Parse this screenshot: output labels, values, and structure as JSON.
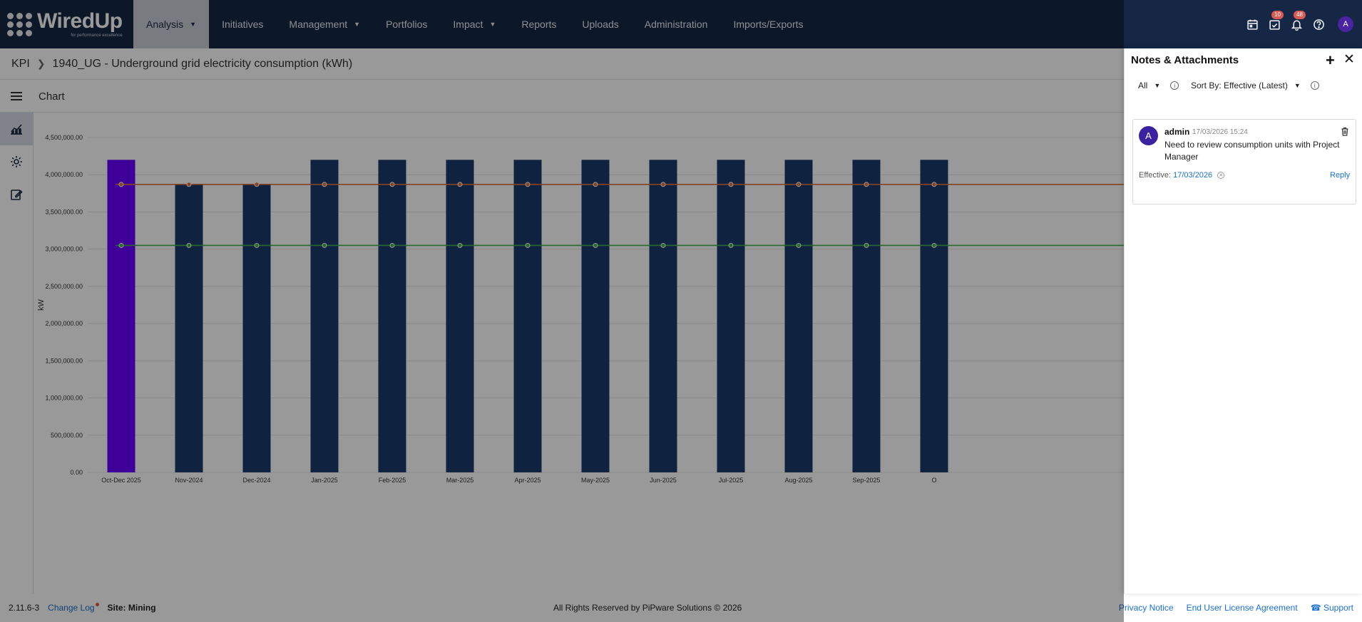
{
  "app": {
    "logo_name": "WiredUp",
    "logo_tagline": "for performance excellence"
  },
  "nav": [
    {
      "label": "Analysis",
      "dropdown": true,
      "active": true
    },
    {
      "label": "Initiatives",
      "dropdown": false
    },
    {
      "label": "Management",
      "dropdown": true
    },
    {
      "label": "Portfolios",
      "dropdown": false
    },
    {
      "label": "Impact",
      "dropdown": true
    },
    {
      "label": "Reports",
      "dropdown": false
    },
    {
      "label": "Uploads",
      "dropdown": false
    },
    {
      "label": "Administration",
      "dropdown": false
    },
    {
      "label": "Imports/Exports",
      "dropdown": false
    }
  ],
  "top_icons": {
    "calendar_icon": "calendar-icon",
    "tasks_badge": "10",
    "notifications_badge": "48",
    "help_icon": "help-icon",
    "avatar_initial": "A"
  },
  "breadcrumb": {
    "root": "KPI",
    "current": "1940_UG - Underground grid electricity consumption (kWh)"
  },
  "toolbar": {
    "title": "Chart"
  },
  "rail": [
    "chart-icon",
    "settings-icon",
    "edit-icon"
  ],
  "chart_data": {
    "type": "bar",
    "ylabel": "kW",
    "ylim": [
      0,
      4500000
    ],
    "yticks": [
      "0.00",
      "500,000.00",
      "1,000,000.00",
      "1,500,000.00",
      "2,000,000.00",
      "2,500,000.00",
      "3,000,000.00",
      "3,500,000.00",
      "4,000,000.00",
      "4,500,000.00"
    ],
    "categories": [
      "Oct-Dec 2025",
      "Nov-2024",
      "Dec-2024",
      "Jan-2025",
      "Feb-2025",
      "Mar-2025",
      "Apr-2025",
      "May-2025",
      "Jun-2025",
      "Jul-2025",
      "Aug-2025",
      "Sep-2025",
      "O"
    ],
    "series": [
      {
        "type": "bar",
        "values": [
          4200000,
          3870000,
          3870000,
          4200000,
          4200000,
          4200000,
          4200000,
          4200000,
          4200000,
          4200000,
          4200000,
          4200000,
          4200000
        ],
        "highlight_index": 0,
        "color": "#1a3b6b",
        "highlight_color": "#6a00ff"
      },
      {
        "type": "line",
        "values": [
          3870000,
          3870000,
          3870000,
          3870000,
          3870000,
          3870000,
          3870000,
          3870000,
          3870000,
          3870000,
          3870000,
          3870000,
          3870000
        ],
        "color": "#e0703a"
      },
      {
        "type": "line",
        "values": [
          3050000,
          3050000,
          3050000,
          3050000,
          3050000,
          3050000,
          3050000,
          3050000,
          3050000,
          3050000,
          3050000,
          3050000,
          3050000
        ],
        "color": "#43b04a"
      }
    ],
    "grid": true
  },
  "panel": {
    "title": "Notes & Attachments",
    "filter_label": "All",
    "sort_label": "Sort By: Effective (Latest)",
    "note": {
      "avatar": "A",
      "author": "admin",
      "timestamp": "17/03/2026 15:24",
      "body": "Need to review consumption units with Project Manager",
      "effective_label": "Effective:",
      "effective_date": "17/03/2026",
      "reply_label": "Reply"
    }
  },
  "footer": {
    "version": "2.11.6-3",
    "changelog": "Change Log",
    "site": "Site: Mining",
    "copyright": "All Rights Reserved by PiPware Solutions © 2026",
    "links": [
      "Privacy Notice",
      "End User License Agreement",
      "Support"
    ]
  }
}
